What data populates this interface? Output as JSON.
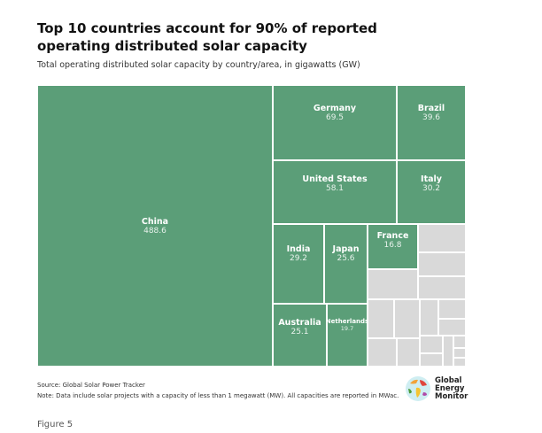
{
  "header": {
    "title": "Top 10 countries account for 90% of reported operating distributed solar capacity",
    "subtitle": "Total operating distributed solar capacity by country/area, in gigawatts (GW)"
  },
  "chart_data": {
    "type": "treemap",
    "title": "Top 10 countries account for 90% of reported operating distributed solar capacity",
    "subtitle": "Total operating distributed solar capacity by country/area, in gigawatts (GW)",
    "unit": "GW",
    "colors": {
      "labeled": "#5b9e78",
      "other": "#d9d9d9"
    },
    "items": [
      {
        "name": "China",
        "value": 488.6
      },
      {
        "name": "Germany",
        "value": 69.5
      },
      {
        "name": "Brazil",
        "value": 39.6
      },
      {
        "name": "United States",
        "value": 58.1
      },
      {
        "name": "Italy",
        "value": 30.2
      },
      {
        "name": "India",
        "value": 29.2
      },
      {
        "name": "Japan",
        "value": 25.6
      },
      {
        "name": "Australia",
        "value": 25.1
      },
      {
        "name": "Netherlands",
        "value": 19.7
      },
      {
        "name": "France",
        "value": 16.8
      }
    ]
  },
  "footer": {
    "source": "Source: Global Solar Power Tracker",
    "note": "Note: Data include solar projects with a capacity of less than 1 megawatt (MW). All capacities are reported in MWac.",
    "figure": "Figure 5",
    "logo": [
      "Global",
      "Energy",
      "Monitor"
    ]
  }
}
